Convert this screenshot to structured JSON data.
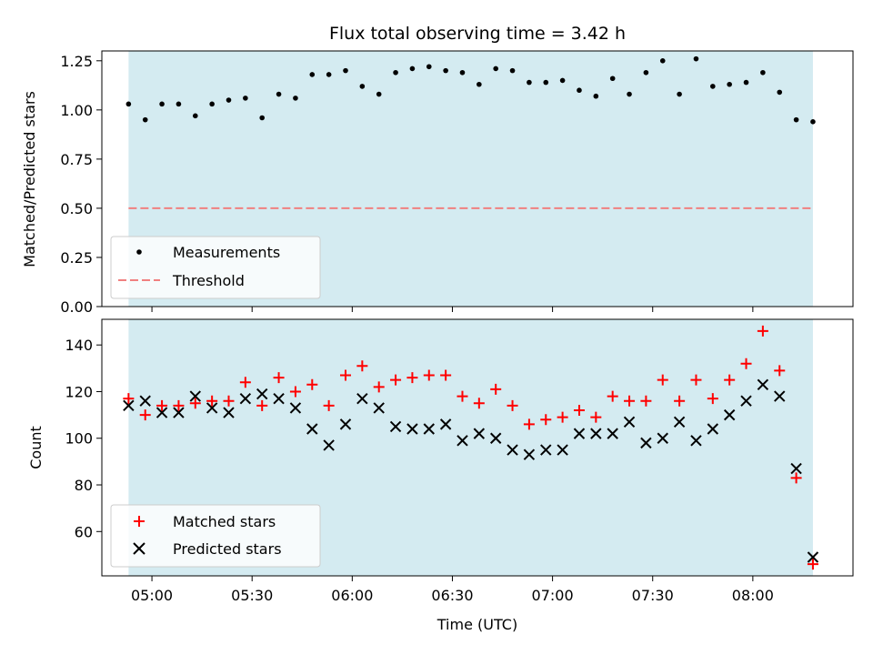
{
  "chart_data": {
    "title": "Flux total observing time = 3.42 h",
    "xlabel": "Time (UTC)",
    "x_ticks": [
      "05:00",
      "05:30",
      "06:00",
      "06:30",
      "07:00",
      "07:30",
      "08:00"
    ],
    "shaded_span": {
      "start": "04:53",
      "end": "08:18",
      "color": "#d4ebf1"
    },
    "x_times": [
      "04:53",
      "04:58",
      "05:03",
      "05:08",
      "05:13",
      "05:18",
      "05:23",
      "05:28",
      "05:33",
      "05:38",
      "05:43",
      "05:48",
      "05:53",
      "05:58",
      "06:03",
      "06:08",
      "06:13",
      "06:18",
      "06:23",
      "06:28",
      "06:33",
      "06:38",
      "06:43",
      "06:48",
      "06:53",
      "06:58",
      "07:03",
      "07:08",
      "07:13",
      "07:18",
      "07:23",
      "07:28",
      "07:33",
      "07:38",
      "07:43",
      "07:48",
      "07:53",
      "07:58",
      "08:03",
      "08:08",
      "08:13",
      "08:18"
    ],
    "top": {
      "type": "scatter",
      "ylabel": "Matched/Predicted stars",
      "ylim": [
        0,
        1.3
      ],
      "y_ticks": [
        "0.00",
        "0.25",
        "0.50",
        "0.75",
        "1.00",
        "1.25"
      ],
      "legend_position": "lower-left",
      "series": [
        {
          "name": "Measurements",
          "color": "#000000",
          "values": [
            1.03,
            0.95,
            1.03,
            1.03,
            0.97,
            1.03,
            1.05,
            1.06,
            0.96,
            1.08,
            1.06,
            1.18,
            1.18,
            1.2,
            1.12,
            1.08,
            1.19,
            1.21,
            1.22,
            1.2,
            1.19,
            1.13,
            1.21,
            1.2,
            1.14,
            1.14,
            1.15,
            1.1,
            1.07,
            1.16,
            1.08,
            1.19,
            1.25,
            1.08,
            1.26,
            1.12,
            1.13,
            1.14,
            1.19,
            1.09,
            0.95,
            0.94
          ]
        }
      ],
      "threshold": {
        "name": "Threshold",
        "value": 0.5,
        "color": "#f08080"
      }
    },
    "bottom": {
      "type": "scatter",
      "ylabel": "Count",
      "ylim": [
        41,
        151
      ],
      "y_ticks": [
        "60",
        "80",
        "100",
        "120",
        "140"
      ],
      "legend_position": "lower-left",
      "series": [
        {
          "name": "Matched stars",
          "marker": "plus",
          "color": "#ff0000",
          "values": [
            117,
            110,
            114,
            114,
            115,
            116,
            116,
            124,
            114,
            126,
            120,
            123,
            114,
            127,
            131,
            122,
            125,
            126,
            127,
            127,
            118,
            115,
            121,
            114,
            106,
            108,
            109,
            112,
            109,
            118,
            116,
            116,
            125,
            116,
            125,
            117,
            125,
            132,
            146,
            129,
            83,
            46
          ]
        },
        {
          "name": "Predicted stars",
          "marker": "x",
          "color": "#000000",
          "values": [
            114,
            116,
            111,
            111,
            118,
            113,
            111,
            117,
            119,
            117,
            113,
            104,
            97,
            106,
            117,
            113,
            105,
            104,
            104,
            106,
            99,
            102,
            100,
            95,
            93,
            95,
            95,
            102,
            102,
            102,
            107,
            98,
            100,
            107,
            99,
            104,
            110,
            116,
            123,
            118,
            87,
            49
          ]
        }
      ]
    }
  }
}
